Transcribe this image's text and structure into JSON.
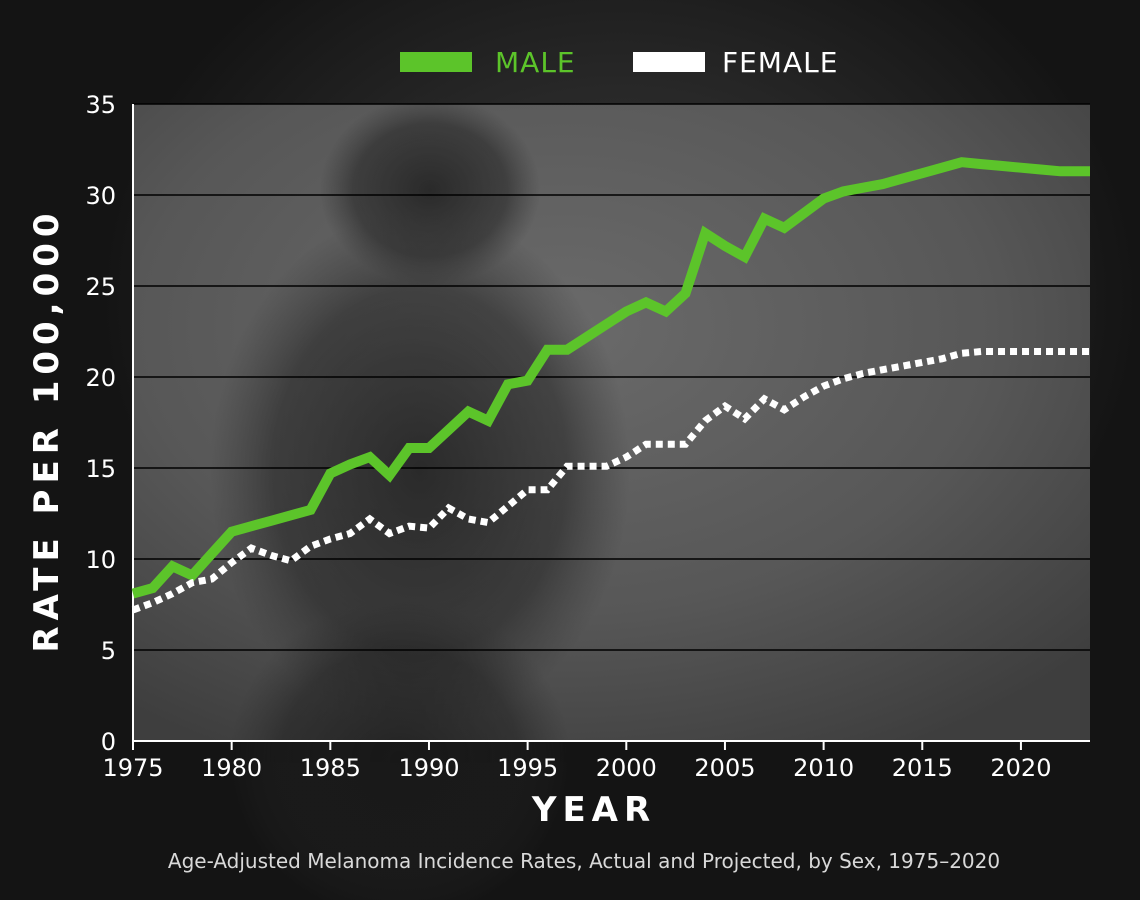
{
  "colors": {
    "male": "#5cc42a",
    "female": "#ffffff",
    "grid": "#000000",
    "plot_bg": "#5a5a5a"
  },
  "chart_data": {
    "type": "line",
    "title": "",
    "xlabel": "YEAR",
    "ylabel": "RATE PER 100,000",
    "caption": "Age-Adjusted Melanoma Incidence Rates, Actual and Projected, by Sex, 1975–2020",
    "xlim": [
      1975,
      2023.5
    ],
    "ylim": [
      0,
      35
    ],
    "x_ticks": [
      1975,
      1980,
      1985,
      1990,
      1995,
      2000,
      2005,
      2010,
      2015,
      2020
    ],
    "y_ticks": [
      0,
      5,
      10,
      15,
      20,
      25,
      30,
      35
    ],
    "grid": true,
    "legend_position": "top-center",
    "series": [
      {
        "name": "MALE",
        "style": "solid",
        "x": [
          1975,
          1976,
          1977,
          1978,
          1979,
          1980,
          1981,
          1982,
          1983,
          1984,
          1985,
          1986,
          1987,
          1988,
          1989,
          1990,
          1991,
          1992,
          1993,
          1994,
          1995,
          1996,
          1997,
          1998,
          1999,
          2000,
          2001,
          2002,
          2003,
          2004,
          2005,
          2006,
          2007,
          2008,
          2009,
          2010,
          2011,
          2012,
          2013,
          2014,
          2015,
          2016,
          2017,
          2018,
          2019,
          2020,
          2021,
          2022,
          2023,
          2023.5
        ],
        "y": [
          8.1,
          8.4,
          9.6,
          9.1,
          10.3,
          11.5,
          11.8,
          12.1,
          12.4,
          12.7,
          14.7,
          15.2,
          15.6,
          14.6,
          16.1,
          16.1,
          17.1,
          18.1,
          17.6,
          19.6,
          19.8,
          21.5,
          21.5,
          22.2,
          22.9,
          23.6,
          24.1,
          23.6,
          24.6,
          27.9,
          27.2,
          26.6,
          28.7,
          28.2,
          29.0,
          29.8,
          30.2,
          30.4,
          30.6,
          30.9,
          31.2,
          31.5,
          31.8,
          31.7,
          31.6,
          31.5,
          31.4,
          31.3,
          31.3,
          31.3
        ]
      },
      {
        "name": "FEMALE",
        "style": "dotted",
        "x": [
          1975,
          1976,
          1977,
          1978,
          1979,
          1980,
          1981,
          1982,
          1983,
          1984,
          1985,
          1986,
          1987,
          1988,
          1989,
          1990,
          1991,
          1992,
          1993,
          1994,
          1995,
          1996,
          1997,
          1998,
          1999,
          2000,
          2001,
          2002,
          2003,
          2004,
          2005,
          2006,
          2007,
          2008,
          2009,
          2010,
          2011,
          2012,
          2013,
          2014,
          2015,
          2016,
          2017,
          2018,
          2019,
          2020,
          2021,
          2022,
          2023,
          2023.5
        ],
        "y": [
          7.2,
          7.6,
          8.1,
          8.7,
          8.9,
          9.8,
          10.6,
          10.2,
          9.9,
          10.7,
          11.1,
          11.4,
          12.2,
          11.4,
          11.8,
          11.7,
          12.8,
          12.2,
          12.0,
          12.9,
          13.8,
          13.8,
          15.1,
          15.1,
          15.1,
          15.6,
          16.3,
          16.3,
          16.3,
          17.6,
          18.4,
          17.7,
          18.8,
          18.2,
          18.9,
          19.5,
          19.9,
          20.2,
          20.4,
          20.6,
          20.8,
          21.0,
          21.3,
          21.4,
          21.4,
          21.4,
          21.4,
          21.4,
          21.4,
          21.4
        ]
      }
    ]
  }
}
